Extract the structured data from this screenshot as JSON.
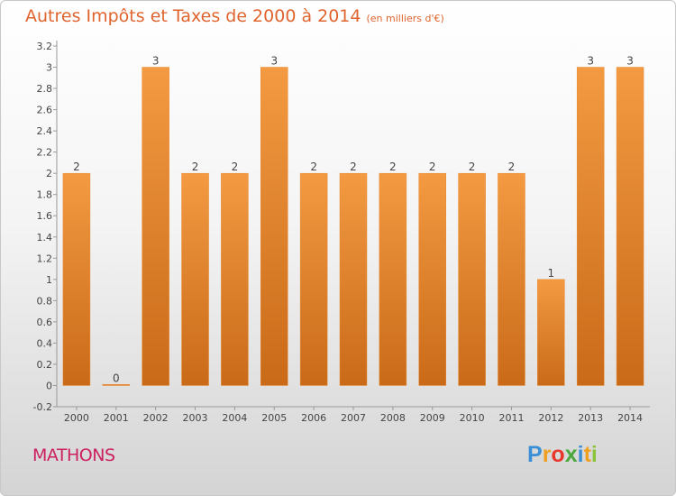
{
  "title": "Autres Impôts et Taxes de 2000 à 2014",
  "unit": "(en milliers d'€)",
  "commune": "MATHONS",
  "logo": {
    "letters": [
      "P",
      "r",
      "o",
      "x",
      "i",
      "t",
      "i"
    ],
    "colors": [
      "#3b8fd6",
      "#f0a020",
      "#e8382c",
      "#4aa83c",
      "#3b8fd6",
      "#f0a020",
      "#8bc43a"
    ]
  },
  "chart_data": {
    "type": "bar",
    "categories": [
      "2000",
      "2001",
      "2002",
      "2003",
      "2004",
      "2005",
      "2006",
      "2007",
      "2008",
      "2009",
      "2010",
      "2011",
      "2012",
      "2013",
      "2014"
    ],
    "values": [
      2,
      0,
      3,
      2,
      2,
      3,
      2,
      2,
      2,
      2,
      2,
      2,
      1,
      3,
      3
    ],
    "value_labels": [
      "2",
      "0",
      "3",
      "2",
      "2",
      "3",
      "2",
      "2",
      "2",
      "2",
      "2",
      "2",
      "1",
      "3",
      "3"
    ],
    "y_ticks": [
      "-0.2",
      "0",
      "0.2",
      "0.4",
      "0.6",
      "0.8",
      "1",
      "1.2",
      "1.4",
      "1.6",
      "1.8",
      "2",
      "2.2",
      "2.4",
      "2.6",
      "2.8",
      "3",
      "3.2"
    ],
    "ylim": [
      -0.2,
      3.2
    ],
    "grid": false,
    "bar_color": "#f39a42",
    "bar_color_dark": "#c96a18"
  }
}
